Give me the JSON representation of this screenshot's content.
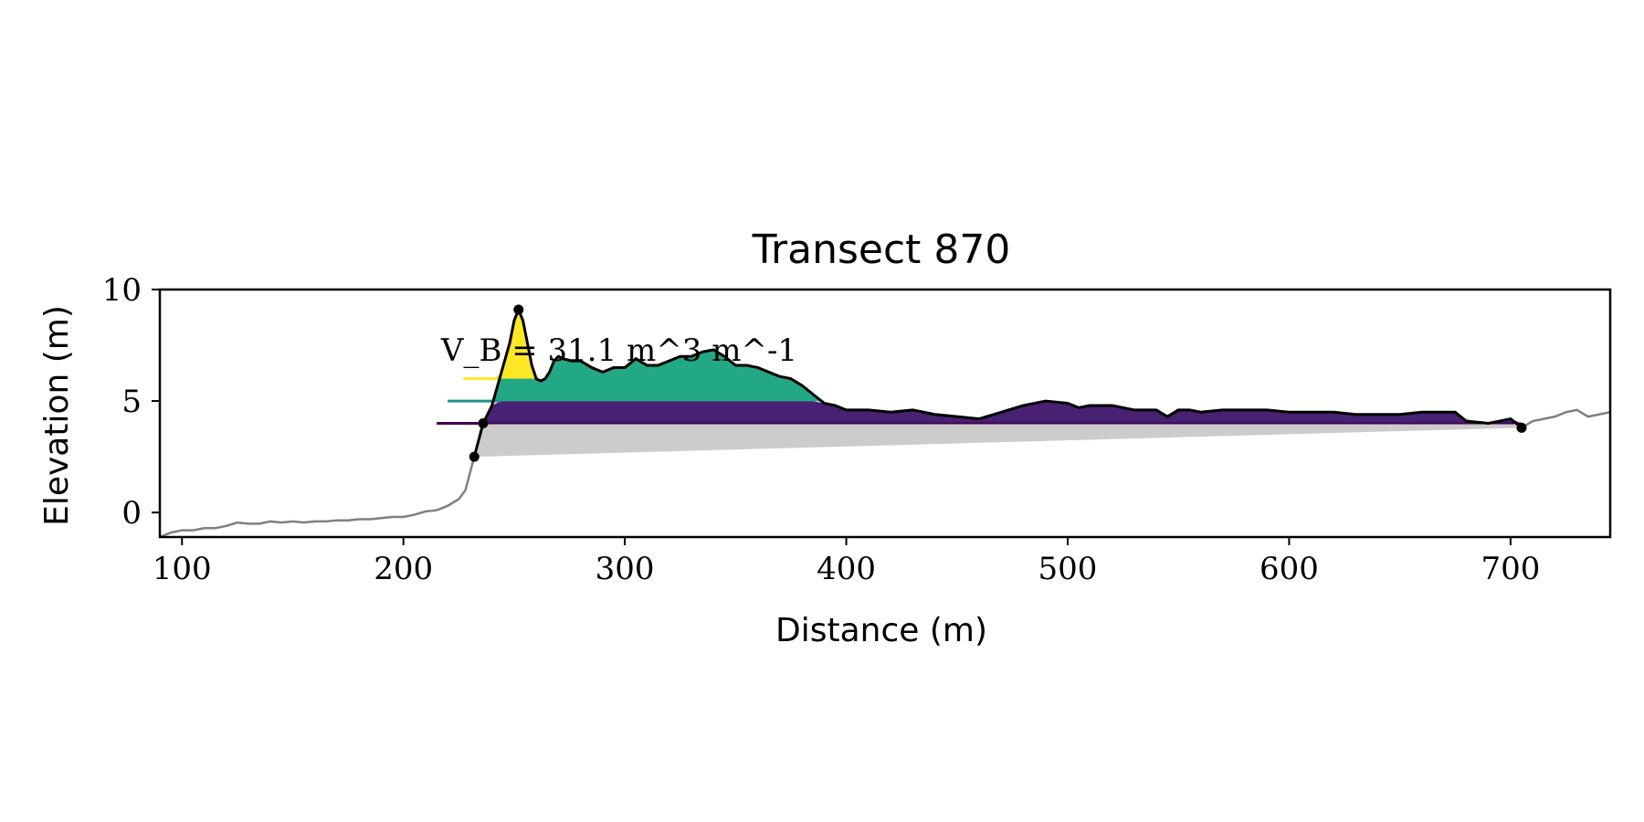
{
  "chart_data": {
    "type": "area",
    "title": "Transect 870",
    "xlabel": "Distance (m)",
    "ylabel": "Elevation (m)",
    "xlim": [
      90,
      745
    ],
    "ylim": [
      -1.1,
      10
    ],
    "x_ticks": [
      100,
      200,
      300,
      400,
      500,
      600,
      700
    ],
    "y_ticks": [
      0,
      5,
      10
    ],
    "grid": false,
    "annotation": "V_B = 31.1 m^3 m^-1",
    "colors": {
      "full_profile": "#808080",
      "base_fill": "#cccccc",
      "purple_fill": "#482173",
      "green_fill": "#22a884",
      "yellow_fill": "#fde725",
      "level_purple": "#440154",
      "level_teal": "#21918c",
      "level_yellow": "#fde725",
      "profile_line": "#000000"
    },
    "levels": [
      {
        "elevation": 4.0,
        "x_start": 215,
        "color": "level_purple"
      },
      {
        "elevation": 5.0,
        "x_start": 220,
        "color": "level_teal"
      },
      {
        "elevation": 6.0,
        "x_start": 227,
        "color": "level_yellow"
      }
    ],
    "full_profile": {
      "x": [
        90,
        95,
        100,
        105,
        110,
        115,
        120,
        125,
        130,
        135,
        140,
        145,
        150,
        155,
        160,
        165,
        170,
        175,
        180,
        185,
        190,
        195,
        200,
        205,
        210,
        215,
        220,
        225,
        228,
        232
      ],
      "y": [
        -1.1,
        -0.9,
        -0.8,
        -0.8,
        -0.7,
        -0.7,
        -0.6,
        -0.45,
        -0.5,
        -0.5,
        -0.4,
        -0.45,
        -0.4,
        -0.45,
        -0.4,
        -0.4,
        -0.35,
        -0.35,
        -0.3,
        -0.3,
        -0.25,
        -0.2,
        -0.2,
        -0.1,
        0.05,
        0.1,
        0.3,
        0.6,
        1.0,
        2.5
      ]
    },
    "tail_profile": {
      "x": [
        705,
        710,
        715,
        720,
        725,
        730,
        735,
        740,
        745
      ],
      "y": [
        3.8,
        4.1,
        4.2,
        4.3,
        4.5,
        4.6,
        4.3,
        4.4,
        4.5
      ]
    },
    "dune_profile": {
      "x": [
        232,
        236,
        240,
        244,
        248,
        250,
        252,
        254,
        256,
        258,
        260,
        262,
        264,
        266,
        268,
        270,
        272,
        276,
        280,
        285,
        290,
        295,
        300,
        305,
        310,
        315,
        320,
        325,
        330,
        335,
        340,
        345,
        350,
        355,
        360,
        365,
        370,
        375,
        380,
        385,
        390,
        395,
        400,
        410,
        420,
        430,
        440,
        450,
        460,
        470,
        480,
        490,
        500,
        505,
        510,
        520,
        530,
        540,
        545,
        550,
        555,
        560,
        570,
        580,
        590,
        600,
        610,
        620,
        630,
        640,
        650,
        660,
        670,
        675,
        680,
        690,
        695,
        700,
        705
      ],
      "y": [
        2.5,
        4.0,
        4.8,
        6.2,
        7.6,
        8.6,
        9.1,
        8.6,
        7.6,
        6.6,
        6.0,
        5.9,
        6.0,
        6.3,
        6.8,
        7.0,
        6.9,
        6.8,
        6.8,
        6.5,
        6.3,
        6.5,
        6.5,
        6.9,
        6.6,
        6.6,
        6.8,
        7.0,
        7.0,
        7.2,
        7.3,
        7.0,
        6.6,
        6.6,
        6.5,
        6.3,
        6.1,
        6.0,
        5.7,
        5.3,
        4.9,
        4.8,
        4.6,
        4.6,
        4.5,
        4.6,
        4.4,
        4.3,
        4.2,
        4.5,
        4.8,
        5.0,
        4.9,
        4.7,
        4.8,
        4.8,
        4.6,
        4.6,
        4.3,
        4.6,
        4.6,
        4.5,
        4.6,
        4.6,
        4.6,
        4.5,
        4.5,
        4.5,
        4.4,
        4.4,
        4.4,
        4.5,
        4.5,
        4.5,
        4.1,
        4.0,
        4.1,
        4.2,
        3.8
      ]
    },
    "base_line": {
      "x": [
        232,
        705
      ],
      "y": [
        2.5,
        3.8
      ]
    },
    "markers": {
      "x": [
        232,
        236,
        252,
        705
      ],
      "y": [
        2.5,
        4.0,
        9.1,
        3.8
      ]
    }
  }
}
